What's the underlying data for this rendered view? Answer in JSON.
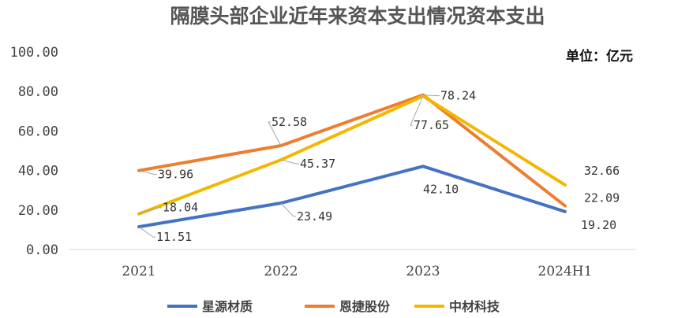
{
  "chart_data": {
    "type": "line",
    "title": "隔膜头部企业近年来资本支出情况资本支出",
    "unit_label": "单位：亿元",
    "categories": [
      "2021",
      "2022",
      "2023",
      "2024H1"
    ],
    "ylim": [
      0,
      100
    ],
    "yticks": [
      "0.00",
      "20.00",
      "40.00",
      "60.00",
      "80.00",
      "100.00"
    ],
    "grid": false,
    "legend_position": "bottom",
    "series": [
      {
        "name": "星源材质",
        "color": "#4472C4",
        "values": [
          11.51,
          23.49,
          42.1,
          19.2
        ],
        "labels": [
          "11.51",
          "23.49",
          "42.10",
          "19.20"
        ]
      },
      {
        "name": "恩捷股份",
        "color": "#ED7D31",
        "values": [
          39.96,
          52.58,
          78.24,
          22.09
        ],
        "labels": [
          "39.96",
          "52.58",
          "78.24",
          "22.09"
        ]
      },
      {
        "name": "中材科技",
        "color": "#F2B800",
        "values": [
          18.04,
          45.37,
          77.65,
          32.66
        ],
        "labels": [
          "18.04",
          "45.37",
          "77.65",
          "32.66"
        ]
      }
    ]
  }
}
